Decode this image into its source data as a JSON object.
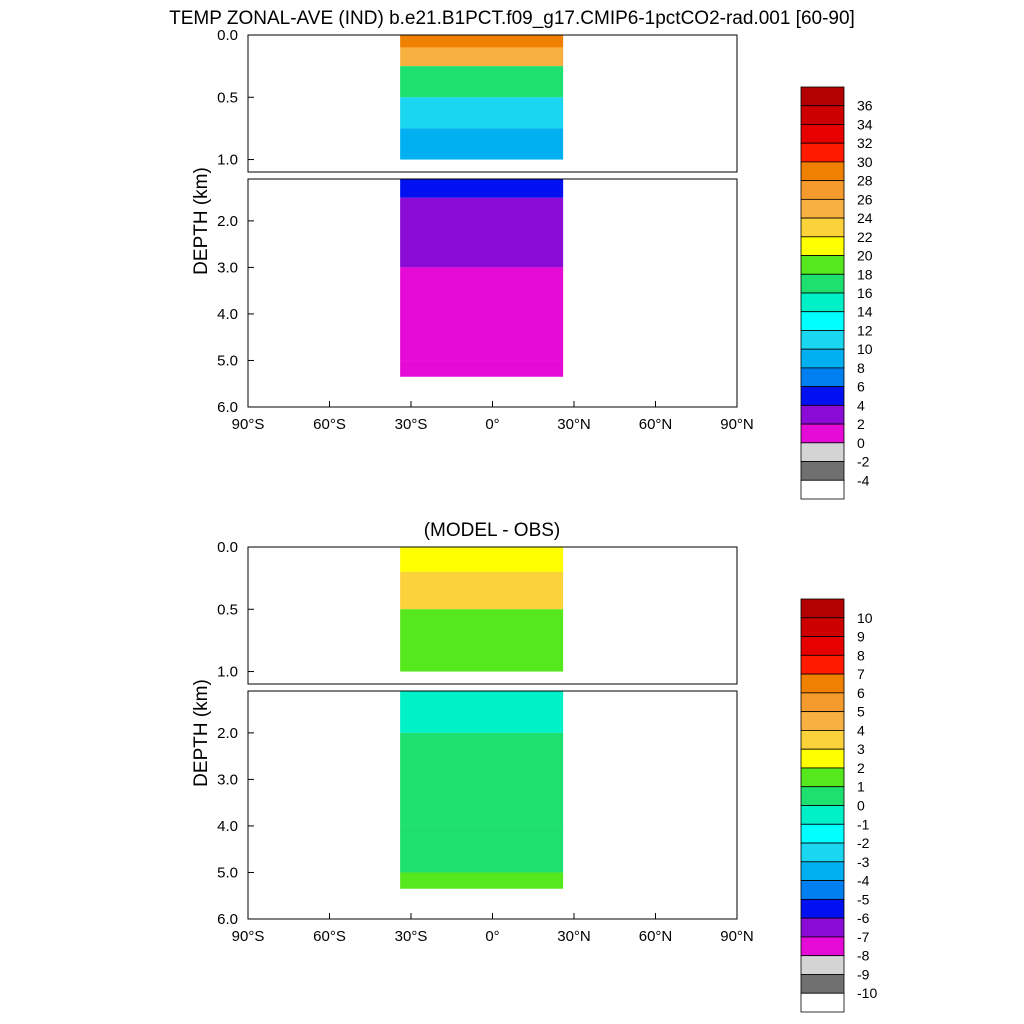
{
  "title": "TEMP ZONAL-AVE (IND) b.e21.B1PCT.f09_g17.CMIP6-1pctCO2-rad.001 [60-90]",
  "chart_data": [
    {
      "type": "heatmap",
      "title": "",
      "xlabel": "",
      "ylabel": "DEPTH (km)",
      "x_range_deg": [
        -90,
        90
      ],
      "x_ticks": [
        "90°S",
        "60°S",
        "30°S",
        "0°",
        "30°N",
        "60°N",
        "90°N"
      ],
      "x_data_extent_deg": [
        -34,
        26
      ],
      "upper_y_range_km": [
        0,
        1.1
      ],
      "upper_y_ticks": [
        "0.0",
        "0.5",
        "1.0"
      ],
      "lower_y_range_km": [
        1.1,
        6.0
      ],
      "lower_y_ticks": [
        "2.0",
        "3.0",
        "4.0",
        "5.0",
        "6.0"
      ],
      "colorbar": {
        "levels": [
          "36",
          "34",
          "32",
          "30",
          "28",
          "26",
          "24",
          "22",
          "20",
          "18",
          "16",
          "14",
          "12",
          "10",
          "8",
          "6",
          "4",
          "2",
          "0",
          "-2",
          "-4"
        ],
        "colors": [
          "#b30000",
          "#cc0000",
          "#e60000",
          "#ff1a00",
          "#f08000",
          "#f59a2c",
          "#f8b040",
          "#fcd23a",
          "#ffff00",
          "#55e81c",
          "#1ee06e",
          "#00f0c8",
          "#00ffff",
          "#1ad6f0",
          "#00b0f0",
          "#0080f0",
          "#0010f0",
          "#8a0ad6",
          "#e60ad6",
          "#d4d4d4",
          "#707070",
          "#ffffff"
        ]
      },
      "depth_profile_degC": [
        {
          "depth_km": 0.0,
          "value": 28
        },
        {
          "depth_km": 0.1,
          "value": 24
        },
        {
          "depth_km": 0.25,
          "value": 16
        },
        {
          "depth_km": 0.5,
          "value": 11
        },
        {
          "depth_km": 0.75,
          "value": 8
        },
        {
          "depth_km": 1.0,
          "value": 5
        },
        {
          "depth_km": 1.5,
          "value": 3
        },
        {
          "depth_km": 3.0,
          "value": 1
        },
        {
          "depth_km": 5.0,
          "value": 1
        }
      ]
    },
    {
      "type": "heatmap",
      "title": "(MODEL - OBS)",
      "xlabel": "",
      "ylabel": "DEPTH (km)",
      "x_range_deg": [
        -90,
        90
      ],
      "x_ticks": [
        "90°S",
        "60°S",
        "30°S",
        "0°",
        "30°N",
        "60°N",
        "90°N"
      ],
      "x_data_extent_deg": [
        -34,
        26
      ],
      "upper_y_range_km": [
        0,
        1.1
      ],
      "upper_y_ticks": [
        "0.0",
        "0.5",
        "1.0"
      ],
      "lower_y_range_km": [
        1.1,
        6.0
      ],
      "lower_y_ticks": [
        "2.0",
        "3.0",
        "4.0",
        "5.0",
        "6.0"
      ],
      "colorbar": {
        "levels": [
          "10",
          "9",
          "8",
          "7",
          "6",
          "5",
          "4",
          "3",
          "2",
          "1",
          "0",
          "-1",
          "-2",
          "-3",
          "-4",
          "-5",
          "-6",
          "-7",
          "-8",
          "-9",
          "-10"
        ],
        "colors": [
          "#b30000",
          "#cc0000",
          "#e60000",
          "#ff1a00",
          "#f08000",
          "#f59a2c",
          "#f8b040",
          "#fcd23a",
          "#ffff00",
          "#55e81c",
          "#1ee06e",
          "#00f0c8",
          "#00ffff",
          "#1ad6f0",
          "#00b0f0",
          "#0080f0",
          "#0010f0",
          "#8a0ad6",
          "#e60ad6",
          "#d4d4d4",
          "#707070",
          "#ffffff"
        ]
      },
      "depth_profile_degC": [
        {
          "depth_km": 0.0,
          "value": 2
        },
        {
          "depth_km": 0.2,
          "value": 3
        },
        {
          "depth_km": 0.5,
          "value": 1
        },
        {
          "depth_km": 1.0,
          "value": -1
        },
        {
          "depth_km": 2.0,
          "value": 0
        },
        {
          "depth_km": 4.0,
          "value": 0
        },
        {
          "depth_km": 5.0,
          "value": 1
        }
      ]
    }
  ]
}
